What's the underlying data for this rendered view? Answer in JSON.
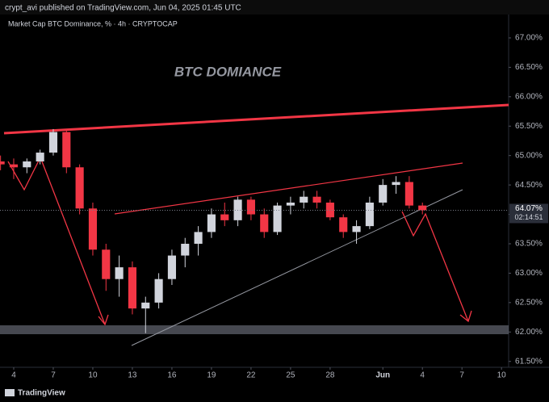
{
  "header": "crypt_avi published on TradingView.com, Jun 04, 2025 01:45 UTC",
  "footer": "TradingView",
  "chart_data": {
    "type": "candlestick",
    "title": "Market Cap BTC Dominance, % · 4h · CRYPTOCAP",
    "annotation": "BTC DOMIANCE",
    "up_color": "#d1d4dc",
    "down_color": "#f23645",
    "x": [
      -1,
      0,
      1,
      2,
      3,
      4,
      5,
      6,
      7,
      8,
      9,
      10,
      11,
      12,
      13,
      14,
      15,
      16,
      17,
      18,
      19,
      20,
      21,
      22,
      23,
      24,
      25,
      26,
      27,
      28,
      29,
      30,
      31
    ],
    "open": [
      64.9,
      64.85,
      64.8,
      64.9,
      65.05,
      65.4,
      64.8,
      64.1,
      63.4,
      62.9,
      63.1,
      62.4,
      62.5,
      62.9,
      63.3,
      63.5,
      63.7,
      64.0,
      63.9,
      64.25,
      64.0,
      63.7,
      64.15,
      64.2,
      64.3,
      64.2,
      63.95,
      63.7,
      63.8,
      64.2,
      64.5,
      64.55,
      64.15
    ],
    "high": [
      65.0,
      64.95,
      64.95,
      65.1,
      65.45,
      65.45,
      64.85,
      64.2,
      63.5,
      63.3,
      63.2,
      62.6,
      63.0,
      63.4,
      63.6,
      63.8,
      64.1,
      64.2,
      64.3,
      64.3,
      64.1,
      64.2,
      64.3,
      64.4,
      64.4,
      64.25,
      64.0,
      63.9,
      64.3,
      64.6,
      64.65,
      64.65,
      64.2
    ],
    "low": [
      64.75,
      64.6,
      64.7,
      64.85,
      65.0,
      64.7,
      64.0,
      63.3,
      62.7,
      62.6,
      62.3,
      61.98,
      62.4,
      62.8,
      63.1,
      63.3,
      63.6,
      63.8,
      63.8,
      63.9,
      63.6,
      63.65,
      64.0,
      64.1,
      64.1,
      63.9,
      63.6,
      63.5,
      63.75,
      64.15,
      64.35,
      64.1,
      64.0
    ],
    "close": [
      64.85,
      64.8,
      64.9,
      65.05,
      65.4,
      64.8,
      64.1,
      63.4,
      62.9,
      63.1,
      62.4,
      62.5,
      62.9,
      63.3,
      63.5,
      63.7,
      64.0,
      63.9,
      64.25,
      64.0,
      63.7,
      64.15,
      64.2,
      64.3,
      64.2,
      63.95,
      63.7,
      63.8,
      64.2,
      64.5,
      64.55,
      64.15,
      64.07
    ],
    "xlim": [
      -1.04,
      37.54
    ],
    "xticks": [
      {
        "value": 0,
        "label": "4"
      },
      {
        "value": 3,
        "label": "7"
      },
      {
        "value": 6,
        "label": "10"
      },
      {
        "value": 9,
        "label": "13"
      },
      {
        "value": 12,
        "label": "16"
      },
      {
        "value": 15,
        "label": "19"
      },
      {
        "value": 18,
        "label": "22"
      },
      {
        "value": 21,
        "label": "25"
      },
      {
        "value": 24,
        "label": "28"
      },
      {
        "value": 28,
        "label": "Jun"
      },
      {
        "value": 31,
        "label": "4"
      },
      {
        "value": 34,
        "label": "7"
      },
      {
        "value": 37,
        "label": "10"
      }
    ],
    "ylim": [
      61.4,
      67.37
    ],
    "yticks": [
      {
        "value": 61.5,
        "label": "61.50%"
      },
      {
        "value": 62,
        "label": "62.00%"
      },
      {
        "value": 62.5,
        "label": "62.50%"
      },
      {
        "value": 63,
        "label": "63.00%"
      },
      {
        "value": 63.5,
        "label": "63.50%"
      },
      {
        "value": 64,
        "label": "64.00%"
      },
      {
        "value": 64.5,
        "label": "64.50%"
      },
      {
        "value": 65,
        "label": "65.00%"
      },
      {
        "value": 65.5,
        "label": "65.50%"
      },
      {
        "value": 66,
        "label": "66.00%"
      },
      {
        "value": 66.5,
        "label": "66.50%"
      },
      {
        "value": 67,
        "label": "67.00%"
      }
    ],
    "last_price": {
      "value": 64.07,
      "label": "64.07%"
    },
    "countdown": "02:14:51"
  }
}
